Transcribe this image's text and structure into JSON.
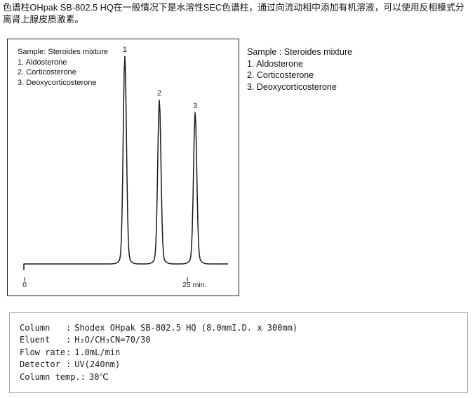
{
  "intro": {
    "text": "色谱柱OHpak SB-802.5 HQ在一般情况下是水溶性SEC色谱柱，通过向流动相中添加有机溶液，可以使用反相模式分离肾上腺皮质激素。"
  },
  "chart_data": {
    "type": "line",
    "subtype": "chromatogram",
    "title": "",
    "grid": false,
    "legend": {
      "position": "top-left-inside",
      "title": "Sample: Steroides mixture",
      "entries": [
        "1. Aldosterone",
        "2. Corticosterone",
        "3. Deoxycorticosterone"
      ]
    },
    "x_axis": {
      "unit": "min",
      "range_min": [
        0,
        31.3
      ],
      "ticks": [
        {
          "value": 0,
          "label": "0"
        },
        {
          "value": 25,
          "label": "25 min."
        }
      ]
    },
    "y_axis": {
      "label": "",
      "visible": false
    },
    "peaks": [
      {
        "label": "1",
        "name": "Aldosterone",
        "retention_min": 15.4,
        "rel_height": 1.0
      },
      {
        "label": "2",
        "name": "Corticosterone",
        "retention_min": 20.7,
        "rel_height": 0.79
      },
      {
        "label": "3",
        "name": "Deoxycorticosterone",
        "retention_min": 26.2,
        "rel_height": 0.73
      }
    ],
    "trace_color": "#1a1a1a"
  },
  "side_legend": {
    "title": "Sample : Steroides mixture",
    "items": [
      "1. Aldosterone",
      "2. Corticosterone",
      "3. Deoxycorticosterone"
    ]
  },
  "conditions": {
    "colon": ":",
    "rows": [
      {
        "label": "Column",
        "value": "Shodex OHpak SB-802.5 HQ (8.0mmI.D. x 300mm)"
      },
      {
        "label": "Eluent",
        "value": "H₂O/CH₃CN=70/30"
      },
      {
        "label": "Flow rate",
        "value": "1.0mL/min"
      },
      {
        "label": "Detector",
        "value": "UV(240nm)"
      },
      {
        "label": "Column temp.",
        "value": "30℃"
      }
    ]
  }
}
